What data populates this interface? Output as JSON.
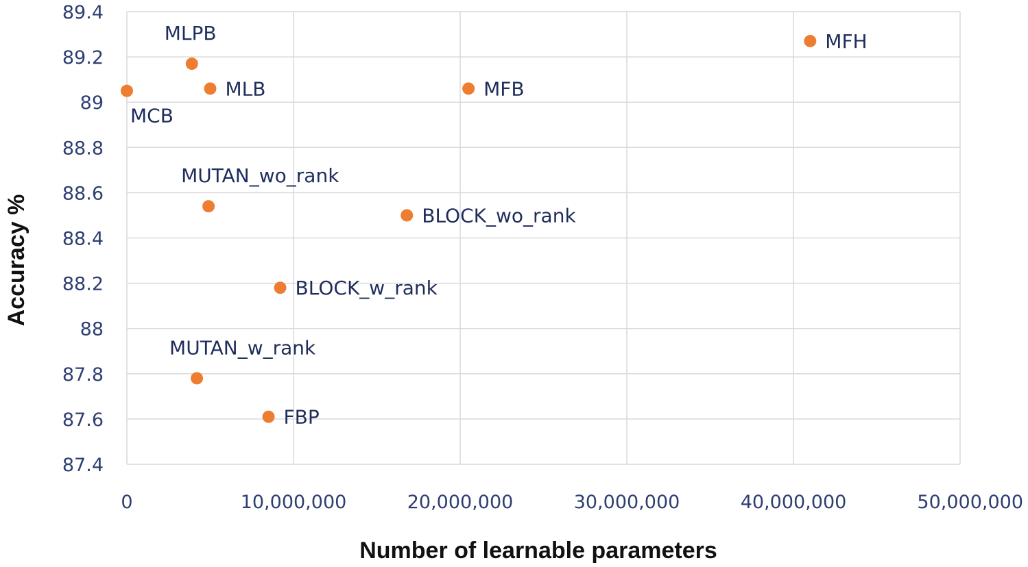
{
  "chart_data": {
    "type": "scatter",
    "title": "",
    "xlabel": "Number of learnable parameters",
    "ylabel": "Accuracy %",
    "xlim": [
      0,
      50000000
    ],
    "ylim": [
      87.4,
      89.4
    ],
    "x_ticks": [
      0,
      10000000,
      20000000,
      30000000,
      40000000,
      50000000
    ],
    "x_tick_labels": [
      "0",
      "10,000,000",
      "20,000,000",
      "30,000,000",
      "40,000,000",
      "50,000,000"
    ],
    "y_ticks": [
      87.4,
      87.6,
      87.8,
      88,
      88.2,
      88.4,
      88.6,
      88.8,
      89,
      89.2,
      89.4
    ],
    "y_tick_labels": [
      "87.4",
      "87.6",
      "87.8",
      "88",
      "88.2",
      "88.4",
      "88.6",
      "88.8",
      "89",
      "89.2",
      "89.4"
    ],
    "grid": true,
    "legend": "none",
    "point_color": "#ed7d31",
    "points": [
      {
        "label": "MCB",
        "x": 0,
        "y": 89.05,
        "label_pos": "below"
      },
      {
        "label": "MLPB",
        "x": 3900000,
        "y": 89.17,
        "label_pos": "above"
      },
      {
        "label": "MLB",
        "x": 5000000,
        "y": 89.06,
        "label_pos": "right"
      },
      {
        "label": "MFB",
        "x": 20500000,
        "y": 89.06,
        "label_pos": "right"
      },
      {
        "label": "MFH",
        "x": 41000000,
        "y": 89.27,
        "label_pos": "right"
      },
      {
        "label": "MUTAN_wo_rank",
        "x": 4900000,
        "y": 88.54,
        "label_pos": "above"
      },
      {
        "label": "BLOCK_wo_rank",
        "x": 16800000,
        "y": 88.5,
        "label_pos": "right"
      },
      {
        "label": "BLOCK_w_rank",
        "x": 9200000,
        "y": 88.18,
        "label_pos": "right"
      },
      {
        "label": "MUTAN_w_rank",
        "x": 4200000,
        "y": 87.78,
        "label_pos": "above"
      },
      {
        "label": "FBP",
        "x": 8500000,
        "y": 87.61,
        "label_pos": "right"
      }
    ]
  }
}
